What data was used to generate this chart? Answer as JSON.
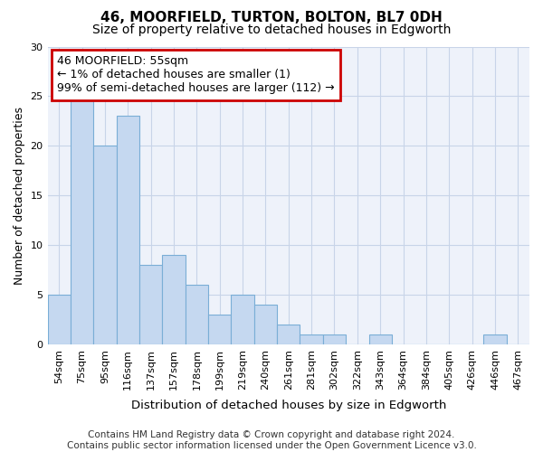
{
  "title": "46, MOORFIELD, TURTON, BOLTON, BL7 0DH",
  "subtitle": "Size of property relative to detached houses in Edgworth",
  "xlabel": "Distribution of detached houses by size in Edgworth",
  "ylabel": "Number of detached properties",
  "categories": [
    "54sqm",
    "75sqm",
    "95sqm",
    "116sqm",
    "137sqm",
    "157sqm",
    "178sqm",
    "199sqm",
    "219sqm",
    "240sqm",
    "261sqm",
    "281sqm",
    "302sqm",
    "322sqm",
    "343sqm",
    "364sqm",
    "384sqm",
    "405sqm",
    "426sqm",
    "446sqm",
    "467sqm"
  ],
  "values": [
    5,
    25,
    20,
    23,
    8,
    9,
    6,
    3,
    5,
    4,
    2,
    1,
    1,
    0,
    1,
    0,
    0,
    0,
    0,
    1,
    0
  ],
  "bar_color": "#c5d8f0",
  "bar_edge_color": "#7aaed6",
  "annotation_text": "46 MOORFIELD: 55sqm\n← 1% of detached houses are smaller (1)\n99% of semi-detached houses are larger (112) →",
  "annotation_box_color": "white",
  "annotation_box_edge_color": "#cc0000",
  "ylim": [
    0,
    30
  ],
  "yticks": [
    0,
    5,
    10,
    15,
    20,
    25,
    30
  ],
  "grid_color": "#c8d4e8",
  "background_color": "#eef2fa",
  "footer_line1": "Contains HM Land Registry data © Crown copyright and database right 2024.",
  "footer_line2": "Contains public sector information licensed under the Open Government Licence v3.0.",
  "title_fontsize": 11,
  "subtitle_fontsize": 10,
  "xlabel_fontsize": 9.5,
  "ylabel_fontsize": 9,
  "tick_fontsize": 8,
  "annotation_fontsize": 9,
  "footer_fontsize": 7.5
}
